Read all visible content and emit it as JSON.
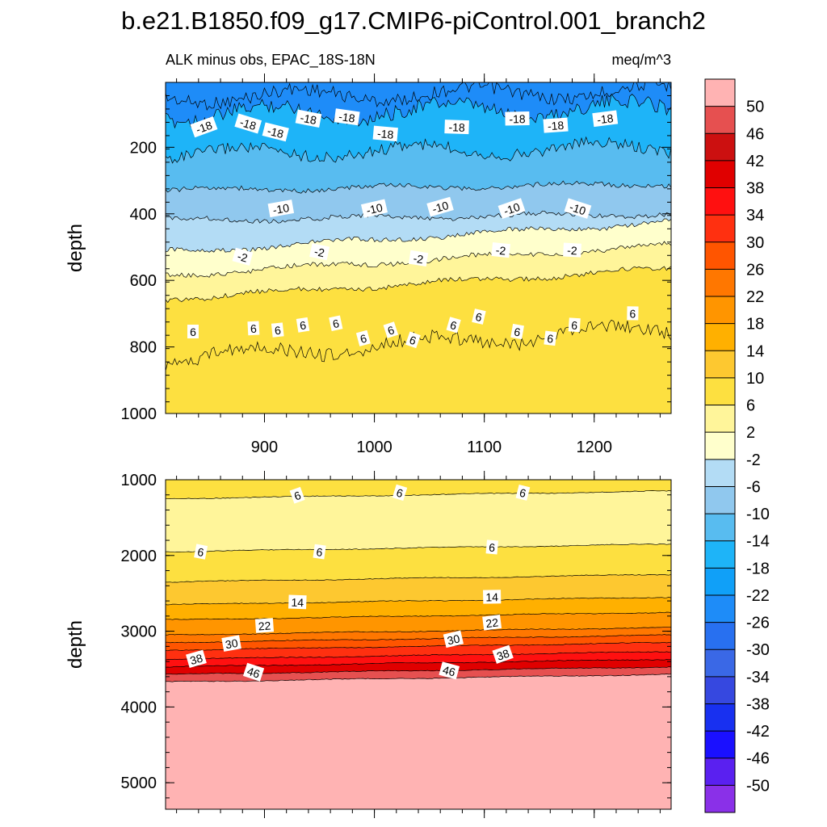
{
  "title": "b.e21.B1850.f09_g17.CMIP6-piControl.001_branch2",
  "colorbar": {
    "labels": [
      "50",
      "46",
      "42",
      "38",
      "34",
      "30",
      "26",
      "22",
      "18",
      "14",
      "10",
      "6",
      "2",
      "-2",
      "-6",
      "-10",
      "-14",
      "-18",
      "-22",
      "-26",
      "-30",
      "-34",
      "-38",
      "-42",
      "-46",
      "-50"
    ],
    "colors": [
      "#ffb3b3",
      "#e65050",
      "#cc1010",
      "#e00000",
      "#ff1010",
      "#ff3010",
      "#ff5500",
      "#ff7700",
      "#ff9500",
      "#ffb000",
      "#fdc830",
      "#fde040",
      "#fff59a",
      "#ffffcc",
      "#b3dcf5",
      "#90c8ee",
      "#58bcf0",
      "#1eb4f8",
      "#10a0f8",
      "#1e8cf8",
      "#2870f0",
      "#3a68e6",
      "#3648e0",
      "#1830f0",
      "#1a10ff",
      "#5a20f0",
      "#8a30e8"
    ]
  },
  "chart_data": [
    {
      "type": "contour",
      "subtitle_left": "ALK minus obs, EPAC_18S-18N",
      "subtitle_right": "meq/m^3",
      "xlabel": "",
      "ylabel": "depth",
      "xlim": [
        810,
        1270
      ],
      "ylim": [
        1000,
        5
      ],
      "xticks": [
        "900",
        "1000",
        "1100",
        "1200"
      ],
      "xtick_values": [
        900,
        1000,
        1100,
        1200
      ],
      "yticks": [
        "200",
        "400",
        "600",
        "800",
        "1000"
      ],
      "ytick_values": [
        200,
        400,
        600,
        800,
        1000
      ],
      "contour_levels_depth": [
        {
          "level": "-22",
          "depth": 40
        },
        {
          "level": "-18",
          "depth": 90
        },
        {
          "level": "-14",
          "depth": 210
        },
        {
          "level": "-10",
          "depth": 320
        },
        {
          "level": "-6",
          "depth": 410
        },
        {
          "level": "-2",
          "depth": 470
        },
        {
          "level": "2",
          "depth": 540
        },
        {
          "level": "6",
          "depth": 610
        },
        {
          "level": "10",
          "depth": 790
        }
      ],
      "contour_labels": [
        {
          "text": "-18",
          "x": 845,
          "depth": 140
        },
        {
          "text": "-18",
          "x": 885,
          "depth": 130
        },
        {
          "text": "-18",
          "x": 910,
          "depth": 155
        },
        {
          "text": "-18",
          "x": 940,
          "depth": 115
        },
        {
          "text": "-18",
          "x": 975,
          "depth": 110
        },
        {
          "text": "-18",
          "x": 1010,
          "depth": 160
        },
        {
          "text": "-18",
          "x": 1075,
          "depth": 140
        },
        {
          "text": "-18",
          "x": 1130,
          "depth": 115
        },
        {
          "text": "-18",
          "x": 1165,
          "depth": 135
        },
        {
          "text": "-18",
          "x": 1210,
          "depth": 115
        },
        {
          "text": "-10",
          "x": 915,
          "depth": 385
        },
        {
          "text": "-10",
          "x": 1000,
          "depth": 385
        },
        {
          "text": "-10",
          "x": 1060,
          "depth": 380
        },
        {
          "text": "-10",
          "x": 1125,
          "depth": 385
        },
        {
          "text": "-10",
          "x": 1185,
          "depth": 385
        },
        {
          "text": "-2",
          "x": 880,
          "depth": 530
        },
        {
          "text": "-2",
          "x": 950,
          "depth": 515
        },
        {
          "text": "-2",
          "x": 1040,
          "depth": 535
        },
        {
          "text": "-2",
          "x": 1115,
          "depth": 510
        },
        {
          "text": "-2",
          "x": 1180,
          "depth": 510
        },
        {
          "text": "6",
          "x": 835,
          "depth": 755
        },
        {
          "text": "6",
          "x": 890,
          "depth": 745
        },
        {
          "text": "6",
          "x": 912,
          "depth": 750
        },
        {
          "text": "6",
          "x": 935,
          "depth": 735
        },
        {
          "text": "6",
          "x": 965,
          "depth": 730
        },
        {
          "text": "6",
          "x": 990,
          "depth": 775
        },
        {
          "text": "6",
          "x": 1015,
          "depth": 750
        },
        {
          "text": "6",
          "x": 1035,
          "depth": 780
        },
        {
          "text": "6",
          "x": 1072,
          "depth": 735
        },
        {
          "text": "6",
          "x": 1095,
          "depth": 710
        },
        {
          "text": "6",
          "x": 1130,
          "depth": 755
        },
        {
          "text": "6",
          "x": 1160,
          "depth": 775
        },
        {
          "text": "6",
          "x": 1182,
          "depth": 735
        },
        {
          "text": "6",
          "x": 1235,
          "depth": 700
        }
      ]
    },
    {
      "type": "contour",
      "xlabel": "",
      "ylabel": "depth",
      "xlim": [
        810,
        1270
      ],
      "ylim": [
        5350,
        1000
      ],
      "yticks": [
        "1000",
        "2000",
        "3000",
        "4000",
        "5000"
      ],
      "ytick_values": [
        1000,
        2000,
        3000,
        4000,
        5000
      ],
      "contour_levels_depth": [
        {
          "level": "6",
          "depth": 1200
        },
        {
          "level": "6",
          "depth": 1900
        },
        {
          "level": "10",
          "depth": 2300
        },
        {
          "level": "14",
          "depth": 2600
        },
        {
          "level": "18",
          "depth": 2800
        },
        {
          "level": "22",
          "depth": 3000
        },
        {
          "level": "26",
          "depth": 3100
        },
        {
          "level": "30",
          "depth": 3200
        },
        {
          "level": "34",
          "depth": 3320
        },
        {
          "level": "38",
          "depth": 3420
        },
        {
          "level": "42",
          "depth": 3520
        },
        {
          "level": "46",
          "depth": 3620
        }
      ],
      "contour_labels": [
        {
          "text": "6",
          "x": 930,
          "depth": 1210
        },
        {
          "text": "6",
          "x": 1023,
          "depth": 1175
        },
        {
          "text": "6",
          "x": 1135,
          "depth": 1175
        },
        {
          "text": "6",
          "x": 842,
          "depth": 1955
        },
        {
          "text": "6",
          "x": 950,
          "depth": 1955
        },
        {
          "text": "6",
          "x": 1107,
          "depth": 1895
        },
        {
          "text": "14",
          "x": 930,
          "depth": 2620
        },
        {
          "text": "14",
          "x": 1107,
          "depth": 2550
        },
        {
          "text": "22",
          "x": 900,
          "depth": 2930
        },
        {
          "text": "22",
          "x": 1107,
          "depth": 2890
        },
        {
          "text": "30",
          "x": 870,
          "depth": 3165
        },
        {
          "text": "30",
          "x": 1072,
          "depth": 3110
        },
        {
          "text": "38",
          "x": 838,
          "depth": 3370
        },
        {
          "text": "38",
          "x": 1117,
          "depth": 3310
        },
        {
          "text": "46",
          "x": 890,
          "depth": 3545
        },
        {
          "text": "46",
          "x": 1068,
          "depth": 3525
        }
      ]
    }
  ]
}
